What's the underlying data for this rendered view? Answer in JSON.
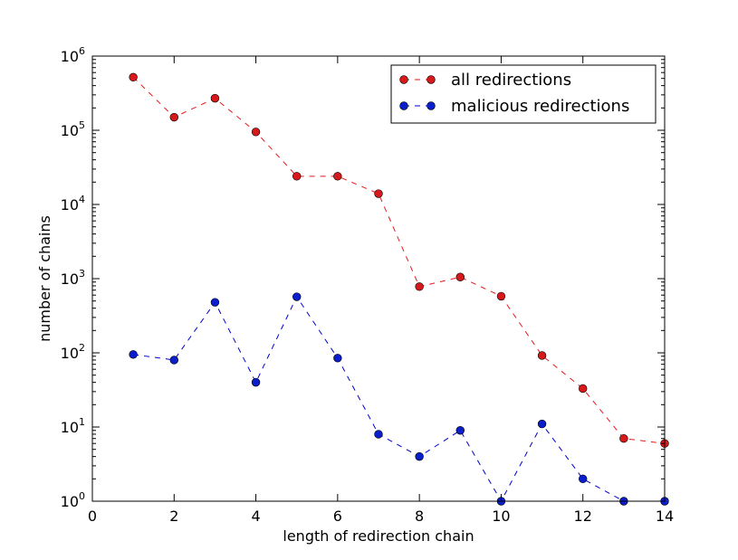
{
  "chart_data": {
    "type": "line",
    "title": "",
    "xlabel": "length of redirection chain",
    "ylabel": "number of chains",
    "xlim": [
      0,
      14
    ],
    "ylim": [
      1,
      1000000
    ],
    "yscale": "log",
    "x_ticks": [
      0,
      2,
      4,
      6,
      8,
      10,
      12,
      14
    ],
    "x_tick_labels": [
      "0",
      "2",
      "4",
      "6",
      "8",
      "10",
      "12",
      "14"
    ],
    "y_ticks": [
      1,
      10,
      100,
      1000,
      10000,
      100000,
      1000000
    ],
    "y_tick_labels": [
      {
        "base": "10",
        "exp": "0"
      },
      {
        "base": "10",
        "exp": "1"
      },
      {
        "base": "10",
        "exp": "2"
      },
      {
        "base": "10",
        "exp": "3"
      },
      {
        "base": "10",
        "exp": "4"
      },
      {
        "base": "10",
        "exp": "5"
      },
      {
        "base": "10",
        "exp": "6"
      }
    ],
    "grid": false,
    "legend_position": "top-right",
    "series": [
      {
        "name": "all redirections",
        "color": "#e31a1c",
        "line_color": "#e31a1c",
        "marker_fill": "#d7191c",
        "line_style": "dashed",
        "marker": "circle",
        "x": [
          1,
          2,
          3,
          4,
          5,
          6,
          7,
          8,
          9,
          10,
          11,
          12,
          13,
          14
        ],
        "y": [
          520000,
          150000,
          270000,
          95000,
          24000,
          24000,
          14000,
          780,
          1050,
          580,
          92,
          33,
          7,
          6
        ]
      },
      {
        "name": "malicious redirections",
        "color": "#0000cc",
        "line_color": "#0000cc",
        "marker_fill": "#0a1ecc",
        "line_style": "dashed",
        "marker": "circle",
        "x": [
          1,
          2,
          3,
          4,
          5,
          6,
          7,
          8,
          9,
          10,
          11,
          12,
          13,
          14
        ],
        "y": [
          95,
          80,
          480,
          40,
          570,
          85,
          8,
          4,
          9,
          1,
          11,
          2,
          1,
          1
        ]
      }
    ]
  }
}
